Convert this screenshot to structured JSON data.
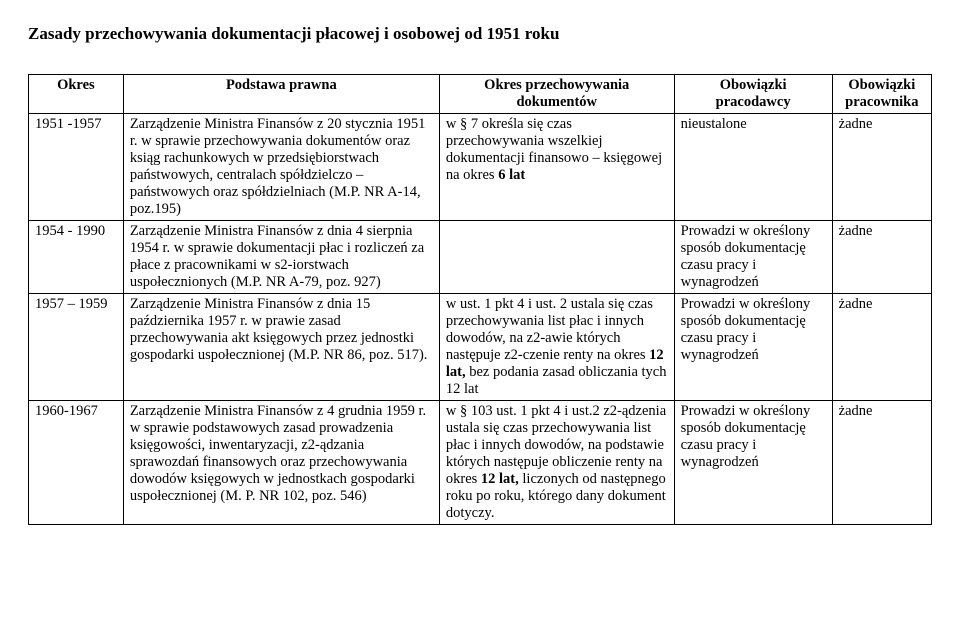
{
  "title": "Zasady przechowywania dokumentacji płacowej i osobowej od 1951 roku",
  "table": {
    "headers": {
      "h1": "Okres",
      "h2": "Podstawa prawna",
      "h3": "Okres przechowywania dokumentów",
      "h4": "Obowiązki pracodawcy",
      "h5": "Obowiązki pracownika"
    },
    "rows": [
      {
        "okres": "1951 -1957",
        "podstawa": "Zarządzenie Ministra Finansów z 20 stycznia 1951 r. w sprawie przechowywania dokumentów oraz ksiąg rachunkowych w przedsiębiorstwach państwowych, centralach spółdzielczo – państwowych oraz spółdzielniach (M.P. NR A-14, poz.195)",
        "okres_przech": "w § 7 określa się czas przechowywania wszelkiej dokumentacji finansowo – księgowej na okres 6 lat",
        "pracodawcy": "nieustalone",
        "pracownika": "żadne"
      },
      {
        "okres": "1954 - 1990",
        "podstawa": "Zarządzenie Ministra Finansów z dnia 4 sierpnia 1954 r. w sprawie dokumentacji płac i rozliczeń za płace z pracownikami w s2-iorstwach uspołecznionych (M.P. NR A-79, poz. 927)",
        "okres_przech": "",
        "pracodawcy": "Prowadzi w określony sposób dokumentację czasu pracy i wynagrodzeń",
        "pracownika": "żadne"
      },
      {
        "okres": "1957 – 1959",
        "podstawa": "Zarządzenie Ministra Finansów z dnia 15 października 1957 r. w prawie zasad przechowywania akt księgowych przez jednostki gospodarki uspołecznionej (M.P. NR 86, poz. 517).",
        "okres_przech": "w ust. 1 pkt 4 i ust. 2 ustala się czas przechowywania list płac i innych dowodów, na z2-awie których następuje z2-czenie renty na okres 12 lat, bez podania zasad obliczania tych 12 lat",
        "pracodawcy": "Prowadzi w określony sposób dokumentację czasu pracy i wynagrodzeń",
        "pracownika": "żadne"
      },
      {
        "okres": "1960-1967",
        "podstawa": "Zarządzenie Ministra Finansów z 4 grudnia 1959 r. w sprawie podstawowych zasad prowadzenia księgowości, inwentaryzacji, z2-ądzania sprawozdań finansowych oraz przechowywania dowodów księgowych w jednostkach gospodarki uspołecznionej (M. P. NR 102, poz. 546)",
        "okres_przech": "w § 103 ust. 1 pkt 4 i ust.2 z2-ądzenia ustala się czas przechowywania list płac i innych dowodów, na podstawie których następuje obliczenie renty na okres 12 lat, liczonych od następnego roku po roku, którego dany dokument dotyczy.",
        "pracodawcy": "Prowadzi w określony sposób dokumentację czasu pracy i wynagrodzeń",
        "pracownika": "żadne"
      }
    ]
  },
  "bold_segments": {
    "r0_okres_przech": "6 lat",
    "r2_okres_przech": "12 lat,",
    "r3_okres_przech": "12 lat,"
  }
}
